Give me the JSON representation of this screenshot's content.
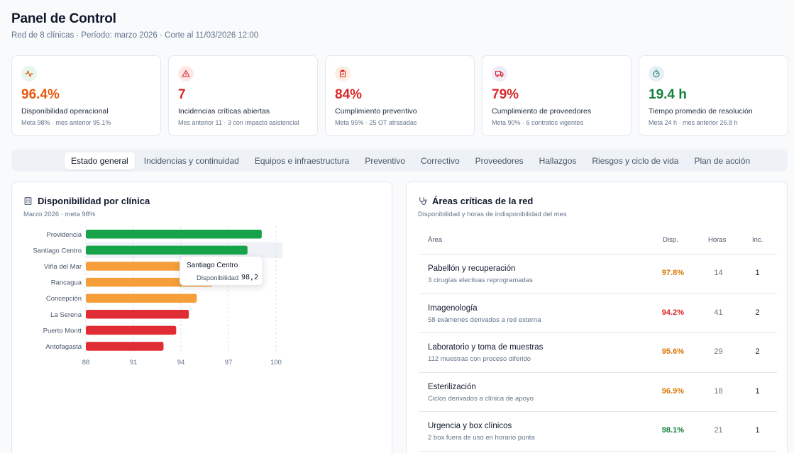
{
  "header": {
    "title": "Panel de Control",
    "subtitle": "Red de 8 clínicas · Período: marzo 2026 · Corte al 11/03/2026 12:00"
  },
  "kpis": [
    {
      "icon": "activity-icon",
      "value": "96.4%",
      "label": "Disponibilidad operacional",
      "note": "Meta 98% · mes anterior 95.1%",
      "color": "#ea580c",
      "icon_bg": "#e7f6ee",
      "icon_color": "#ea580c"
    },
    {
      "icon": "alert-triangle-icon",
      "value": "7",
      "label": "Incidencias críticas abiertas",
      "note": "Mes anterior 11 · 3 con impacto asistencial",
      "color": "#dc2626",
      "icon_bg": "#fde8e8",
      "icon_color": "#dc2626"
    },
    {
      "icon": "clipboard-check-icon",
      "value": "84%",
      "label": "Cumplimiento preventivo",
      "note": "Meta 95% · 25 OT atrasadas",
      "color": "#dc2626",
      "icon_bg": "#fdeee4",
      "icon_color": "#dc2626"
    },
    {
      "icon": "truck-icon",
      "value": "79%",
      "label": "Cumplimiento de proveedores",
      "note": "Meta 90% · 6 contratos vigentes",
      "color": "#dc2626",
      "icon_bg": "#eeeaf8",
      "icon_color": "#dc2626"
    },
    {
      "icon": "timer-icon",
      "value": "19.4 h",
      "label": "Tiempo promedio de resolución",
      "note": "Meta 24 h · mes anterior 26.8 h",
      "color": "#15803d",
      "icon_bg": "#e6eefb",
      "icon_color": "#15803d"
    }
  ],
  "tabs": [
    {
      "label": "Estado general",
      "active": true
    },
    {
      "label": "Incidencias y continuidad",
      "active": false
    },
    {
      "label": "Equipos e infraestructura",
      "active": false
    },
    {
      "label": "Preventivo",
      "active": false
    },
    {
      "label": "Correctivo",
      "active": false
    },
    {
      "label": "Proveedores",
      "active": false
    },
    {
      "label": "Hallazgos",
      "active": false
    },
    {
      "label": "Riesgos y ciclo de vida",
      "active": false
    },
    {
      "label": "Plan de acción",
      "active": false
    }
  ],
  "availability_panel": {
    "title": "Disponibilidad por clínica",
    "subtitle": "Marzo 2026 · meta 98%",
    "tooltip": {
      "title": "Santiago Centro",
      "label": "Disponibilidad",
      "value": "98,2"
    }
  },
  "chart_data": {
    "type": "bar",
    "orientation": "horizontal",
    "categories": [
      "Providencia",
      "Santiago Centro",
      "Viña del Mar",
      "Rancagua",
      "Concepción",
      "La Serena",
      "Puerto Montt",
      "Antofagasta"
    ],
    "values": [
      99.1,
      98.2,
      96.0,
      96.0,
      95.0,
      94.5,
      93.7,
      92.9
    ],
    "colors": [
      "#16a34a",
      "#16a34a",
      "#f59e3a",
      "#f59e3a",
      "#f59e3a",
      "#e02d35",
      "#e02d35",
      "#e02d35"
    ],
    "xlim": [
      88,
      100
    ],
    "xticks": [
      88,
      91,
      94,
      97,
      100
    ],
    "grid": "vertical-dashed",
    "highlighted_category": "Santiago Centro"
  },
  "critical_areas": {
    "title": "Áreas críticas de la red",
    "subtitle": "Disponibilidad y horas de indisponibilidad del mes",
    "columns": {
      "area": "Área",
      "disp": "Disp.",
      "hours": "Horas",
      "inc": "Inc."
    },
    "rows": [
      {
        "name": "Pabellón y recuperación",
        "note": "3 cirugías electivas reprogramadas",
        "disp": "97.8%",
        "disp_color": "#d97706",
        "hours": "14",
        "inc": "1"
      },
      {
        "name": "Imagenología",
        "note": "58 exámenes derivados a red externa",
        "disp": "94.2%",
        "disp_color": "#dc2626",
        "hours": "41",
        "inc": "2"
      },
      {
        "name": "Laboratorio y toma de muestras",
        "note": "112 muestras con proceso diferido",
        "disp": "95.6%",
        "disp_color": "#d97706",
        "hours": "29",
        "inc": "2"
      },
      {
        "name": "Esterilización",
        "note": "Ciclos derivados a clínica de apoyo",
        "disp": "96.9%",
        "disp_color": "#d97706",
        "hours": "18",
        "inc": "1"
      },
      {
        "name": "Urgencia y box clínicos",
        "note": "2 box fuera de uso en horario punta",
        "disp": "98.1%",
        "disp_color": "#15803d",
        "hours": "21",
        "inc": "1"
      }
    ]
  }
}
